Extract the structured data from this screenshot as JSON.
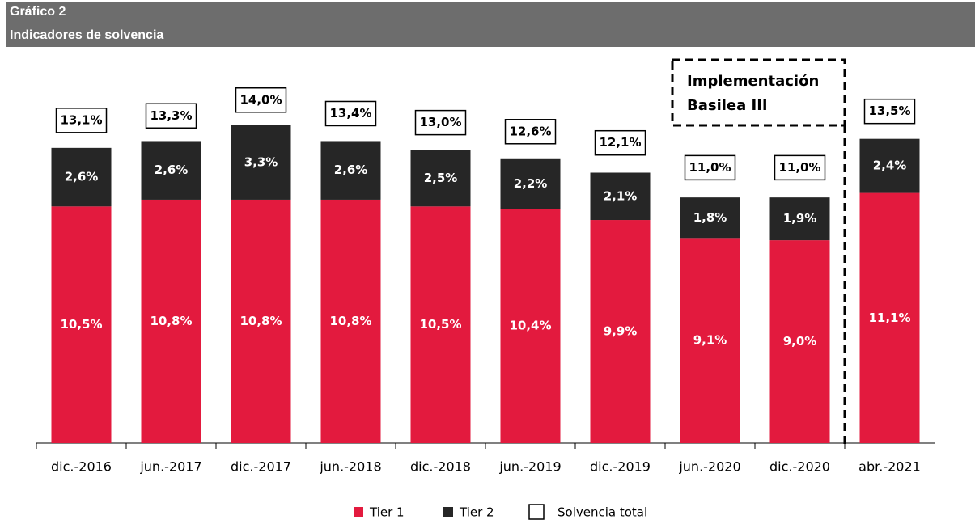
{
  "header": {
    "label": "Gráfico 2",
    "title": "Indicadores de solvencia"
  },
  "chart_data": {
    "type": "stacked-bar",
    "categories": [
      "dic.-2016",
      "jun.-2017",
      "dic.-2017",
      "jun.-2018",
      "dic.-2018",
      "jun.-2019",
      "dic.-2019",
      "jun.-2020",
      "dic.-2020",
      "abr.-2021"
    ],
    "series": [
      {
        "name": "Tier 1",
        "color": "#e31a3e",
        "values": [
          10.5,
          10.8,
          10.8,
          10.8,
          10.5,
          10.4,
          9.9,
          9.1,
          9.0,
          11.1
        ],
        "value_labels": [
          "10,5%",
          "10,8%",
          "10,8%",
          "10,8%",
          "10,5%",
          "10,4%",
          "9,9%",
          "9,1%",
          "9,0%",
          "11,1%"
        ]
      },
      {
        "name": "Tier 2",
        "color": "#262626",
        "values": [
          2.6,
          2.6,
          3.3,
          2.6,
          2.5,
          2.2,
          2.1,
          1.8,
          1.9,
          2.4
        ],
        "value_labels": [
          "2,6%",
          "2,6%",
          "3,3%",
          "2,6%",
          "2,5%",
          "2,2%",
          "2,1%",
          "1,8%",
          "1,9%",
          "2,4%"
        ]
      }
    ],
    "totals": {
      "name": "Solvencia total",
      "values": [
        13.1,
        13.3,
        14.0,
        13.4,
        13.0,
        12.6,
        12.1,
        11.0,
        11.0,
        13.5
      ],
      "value_labels": [
        "13,1%",
        "13,3%",
        "14,0%",
        "13,4%",
        "13,0%",
        "12,6%",
        "12,1%",
        "11,0%",
        "11,0%",
        "13,5%"
      ]
    },
    "annotation": [
      "Implementación",
      "Basilea III"
    ],
    "ylim": [
      0,
      16
    ]
  }
}
